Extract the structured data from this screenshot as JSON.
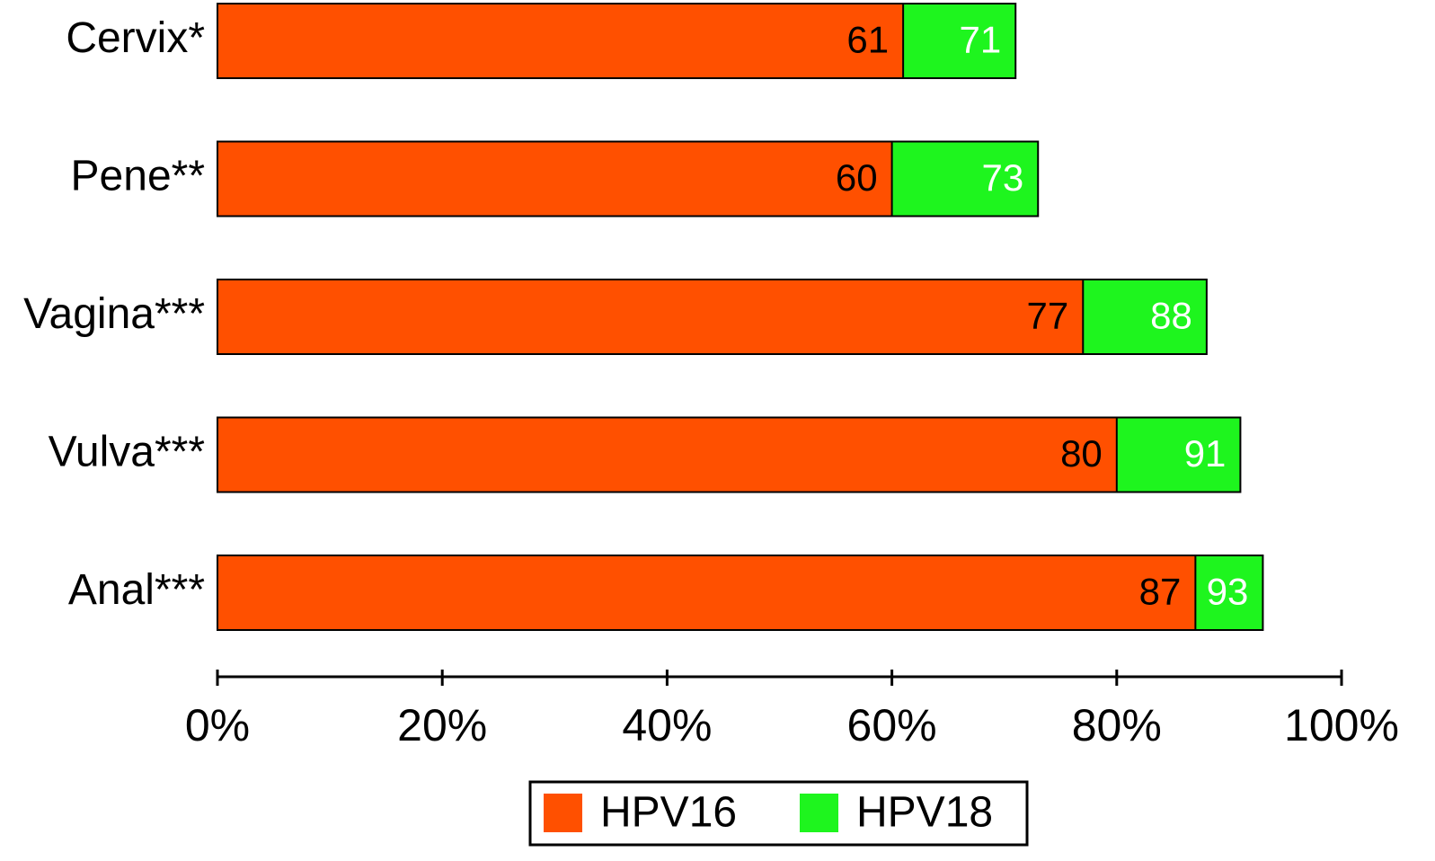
{
  "chart_data": {
    "type": "bar",
    "orientation": "horizontal",
    "overlap": true,
    "categories": [
      "Cervix*",
      "Pene**",
      "Vagina***",
      "Vulva***",
      "Anal***"
    ],
    "series": [
      {
        "name": "HPV16",
        "color": "#ff5000",
        "label_color": "#000000",
        "values": [
          61,
          60,
          77,
          80,
          87
        ]
      },
      {
        "name": "HPV18",
        "color": "#1ef51e",
        "label_color": "#ffffff",
        "values": [
          71,
          73,
          88,
          91,
          93
        ]
      }
    ],
    "xlim": [
      0,
      100
    ],
    "xticks": [
      {
        "value": 0,
        "label": "0%"
      },
      {
        "value": 20,
        "label": "20%"
      },
      {
        "value": 40,
        "label": "40%"
      },
      {
        "value": 60,
        "label": "60%"
      },
      {
        "value": 80,
        "label": "80%"
      },
      {
        "value": 100,
        "label": "100%"
      }
    ],
    "grid": false,
    "legend": "bottom"
  }
}
